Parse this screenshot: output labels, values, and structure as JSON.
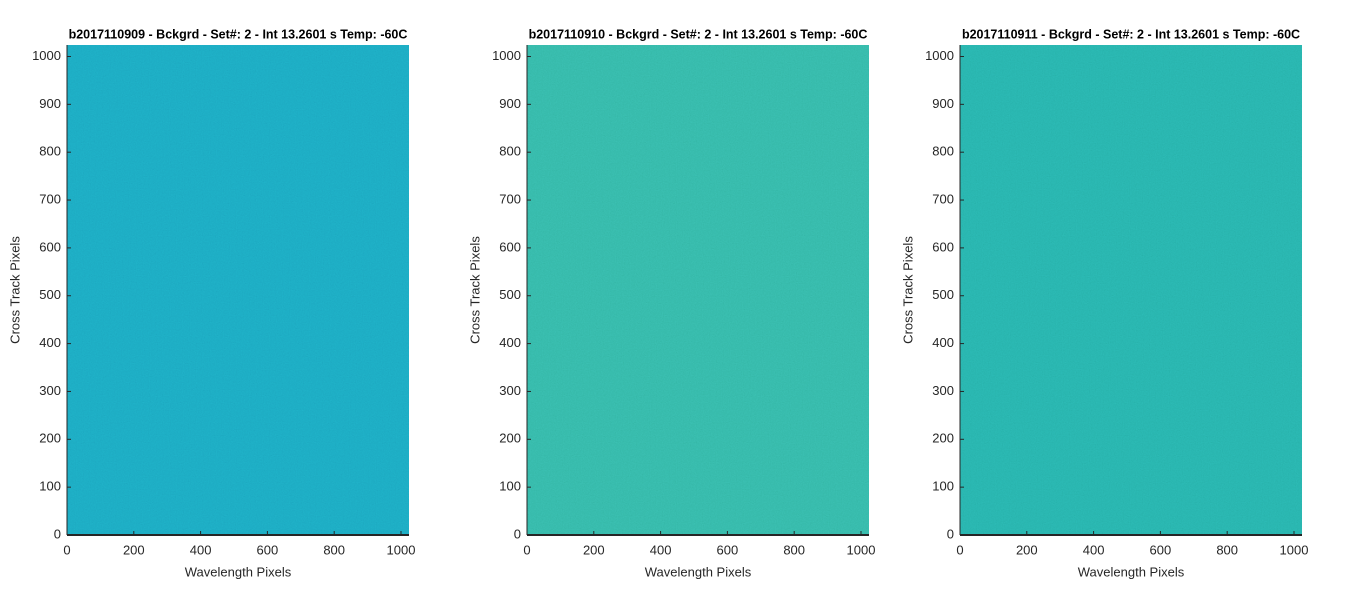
{
  "chart_data": [
    {
      "type": "image",
      "title": "b2017110909 - Bckgrd - Set#: 2 - Int 13.2601 s Temp: -60C",
      "x_label": "Wavelength Pixels",
      "y_label": "Cross Track Pixels",
      "xlim": [
        0,
        1024
      ],
      "ylim": [
        0,
        1024
      ],
      "xticks": [
        0,
        200,
        400,
        600,
        800,
        1000
      ],
      "yticks": [
        0,
        100,
        200,
        300,
        400,
        500,
        600,
        700,
        800,
        900,
        1000
      ],
      "color": "#1ba4c0"
    },
    {
      "type": "image",
      "title": "b2017110910 - Bckgrd - Set#: 2 - Int 13.2601 s Temp: -60C",
      "x_label": "Wavelength Pixels",
      "y_label": "Cross Track Pixels",
      "xlim": [
        0,
        1024
      ],
      "ylim": [
        0,
        1024
      ],
      "xticks": [
        0,
        200,
        400,
        600,
        800,
        1000
      ],
      "yticks": [
        0,
        100,
        200,
        300,
        400,
        500,
        600,
        700,
        800,
        900,
        1000
      ],
      "color": "#33b4a6"
    },
    {
      "type": "image",
      "title": "b2017110911 - Bckgrd - Set#: 2 - Int 13.2601 s Temp: -60C",
      "x_label": "Wavelength Pixels",
      "y_label": "Cross Track Pixels",
      "xlim": [
        0,
        1024
      ],
      "ylim": [
        0,
        1024
      ],
      "xticks": [
        0,
        200,
        400,
        600,
        800,
        1000
      ],
      "yticks": [
        0,
        100,
        200,
        300,
        400,
        500,
        600,
        700,
        800,
        900,
        1000
      ],
      "color": "#26aeaa"
    }
  ]
}
